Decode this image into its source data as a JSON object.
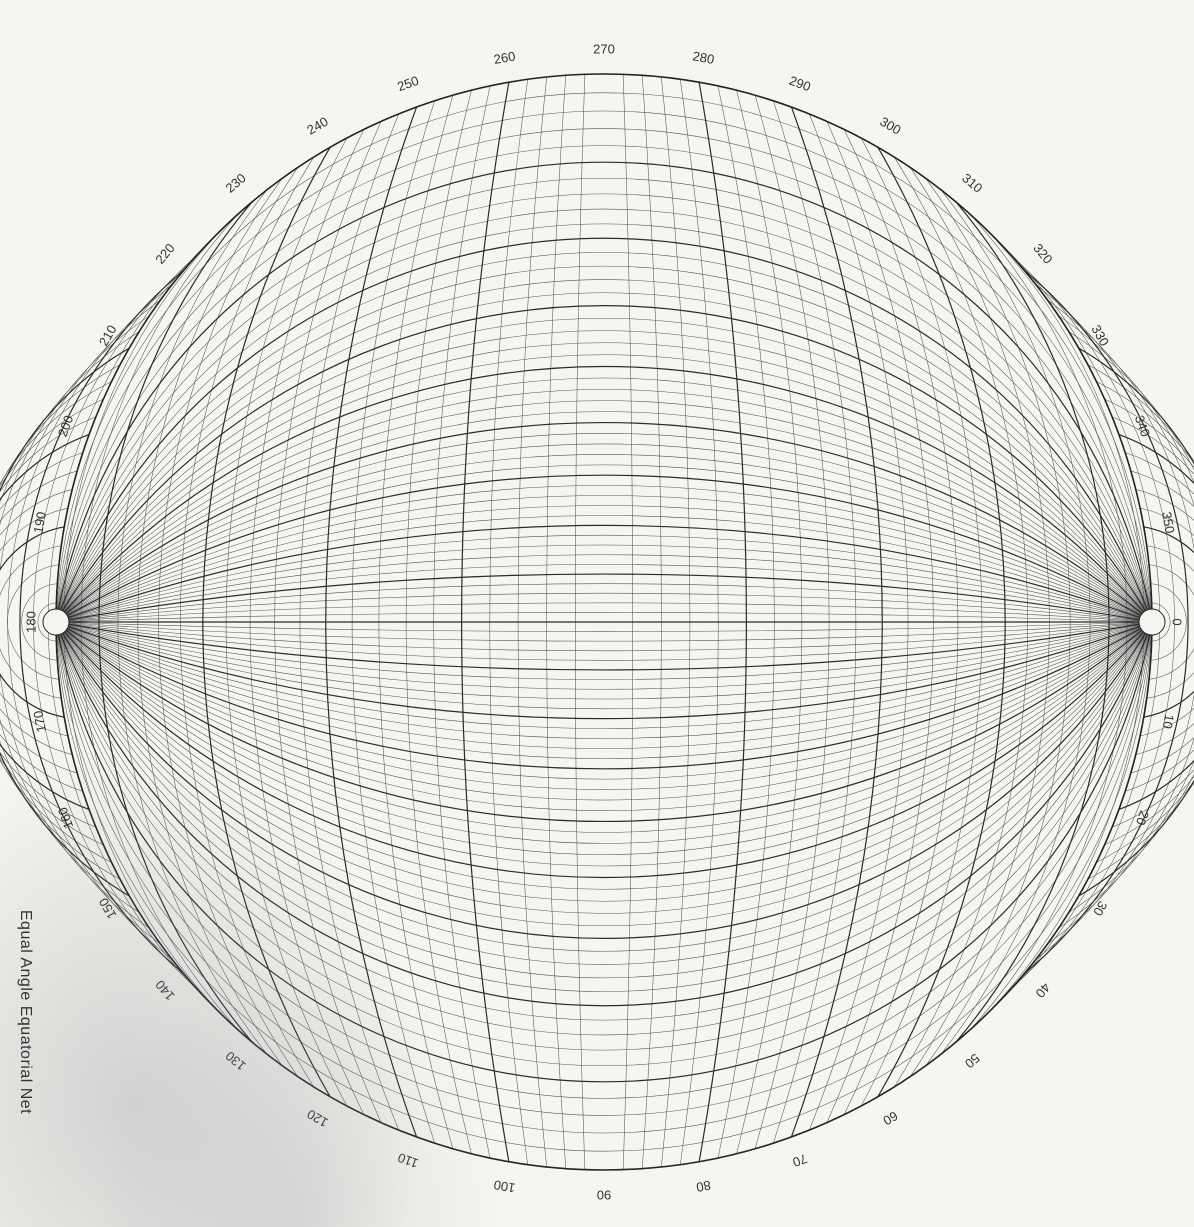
{
  "caption": "Equal Angle Equatorial Net",
  "rim_labels": [
    "0",
    "10",
    "20",
    "30",
    "40",
    "50",
    "60",
    "70",
    "80",
    "90",
    "100",
    "110",
    "120",
    "130",
    "140",
    "150",
    "160",
    "170",
    "180",
    "190",
    "200",
    "210",
    "220",
    "230",
    "240",
    "250",
    "260",
    "270",
    "280",
    "290",
    "300",
    "310",
    "320",
    "330",
    "340",
    "350"
  ],
  "net": {
    "projection": "equal angle (stereographic), equatorial",
    "fine_interval_deg": 2,
    "major_interval_deg": 10,
    "line_color": "#555555",
    "major_line_color": "#2b2b2b",
    "paper_color": "#f6f5f1"
  }
}
